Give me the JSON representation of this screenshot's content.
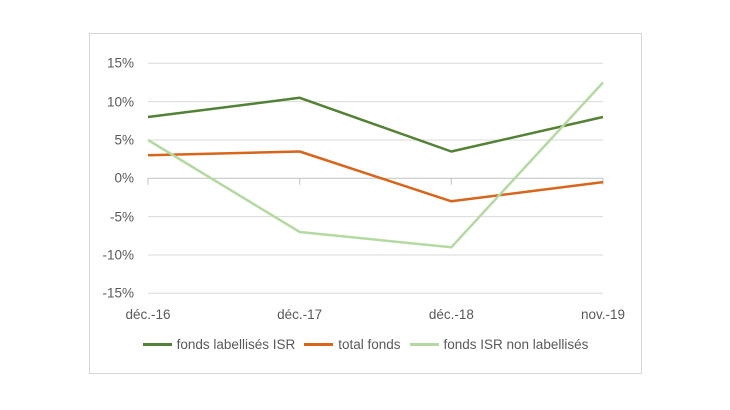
{
  "chart_data": {
    "type": "line",
    "title": "",
    "xlabel": "",
    "ylabel": "",
    "categories": [
      "déc.-16",
      "déc.-17",
      "déc.-18",
      "nov.-19"
    ],
    "series": [
      {
        "name": "fonds labellisés ISR",
        "color": "#538135",
        "values": [
          8,
          10.5,
          3.5,
          8
        ]
      },
      {
        "name": "total fonds",
        "color": "#d7651c",
        "values": [
          3,
          3.5,
          -3,
          -0.5
        ]
      },
      {
        "name": "fonds ISR non labellisés",
        "color": "#b5d9a3",
        "values": [
          5,
          -7,
          -9,
          12.5
        ]
      }
    ],
    "ylim": [
      -15,
      15
    ],
    "y_tick_step": 5,
    "y_ticks": [
      {
        "label": "15%",
        "value": 15
      },
      {
        "label": "10%",
        "value": 10
      },
      {
        "label": "5%",
        "value": 5
      },
      {
        "label": "0%",
        "value": 0
      },
      {
        "label": "-5%",
        "value": -5
      },
      {
        "label": "-10%",
        "value": -10
      },
      {
        "label": "-15%",
        "value": -15
      }
    ],
    "grid": true,
    "legend_position": "bottom",
    "values_unit": "%",
    "grid_color": "#d9d9d9",
    "axis_color": "#c2c2c2",
    "text_color": "#595959"
  }
}
